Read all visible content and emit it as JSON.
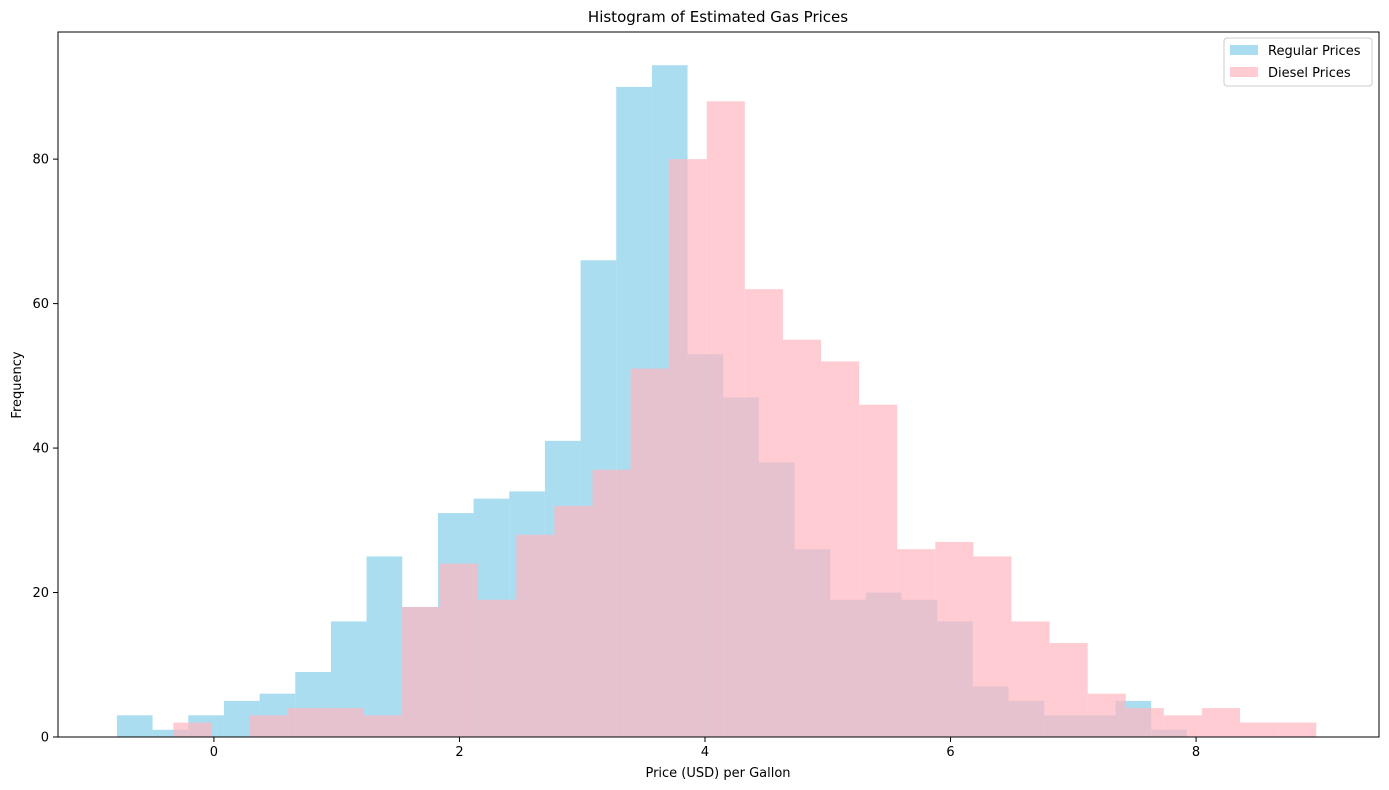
{
  "chart_data": {
    "type": "bar",
    "title": "Histogram of Estimated Gas Prices",
    "xlabel": "Price (USD) per Gallon",
    "ylabel": "Frequency",
    "xlim": [
      -1.27,
      9.49
    ],
    "ylim": [
      0,
      97.6
    ],
    "xticks": [
      0,
      2,
      4,
      6,
      8
    ],
    "yticks": [
      0,
      20,
      40,
      60,
      80
    ],
    "grid": false,
    "legend_position": "top-right",
    "series": [
      {
        "name": "Regular Prices",
        "color": "#87ceeb",
        "opacity": 0.7,
        "bin_start": -0.79,
        "bin_width": 0.2905,
        "counts": [
          3,
          1,
          3,
          5,
          6,
          9,
          16,
          25,
          18,
          31,
          33,
          34,
          41,
          66,
          90,
          93,
          53,
          47,
          38,
          26,
          19,
          20,
          19,
          16,
          7,
          5,
          3,
          3,
          5,
          1
        ]
      },
      {
        "name": "Diesel Prices",
        "color": "#ffb6c1",
        "opacity": 0.7,
        "bin_start": -0.33,
        "bin_width": 0.3103,
        "counts": [
          2,
          0,
          3,
          4,
          4,
          3,
          18,
          24,
          19,
          28,
          32,
          37,
          51,
          80,
          88,
          62,
          55,
          52,
          46,
          26,
          27,
          25,
          16,
          13,
          6,
          4,
          3,
          4,
          2,
          2
        ]
      }
    ]
  }
}
